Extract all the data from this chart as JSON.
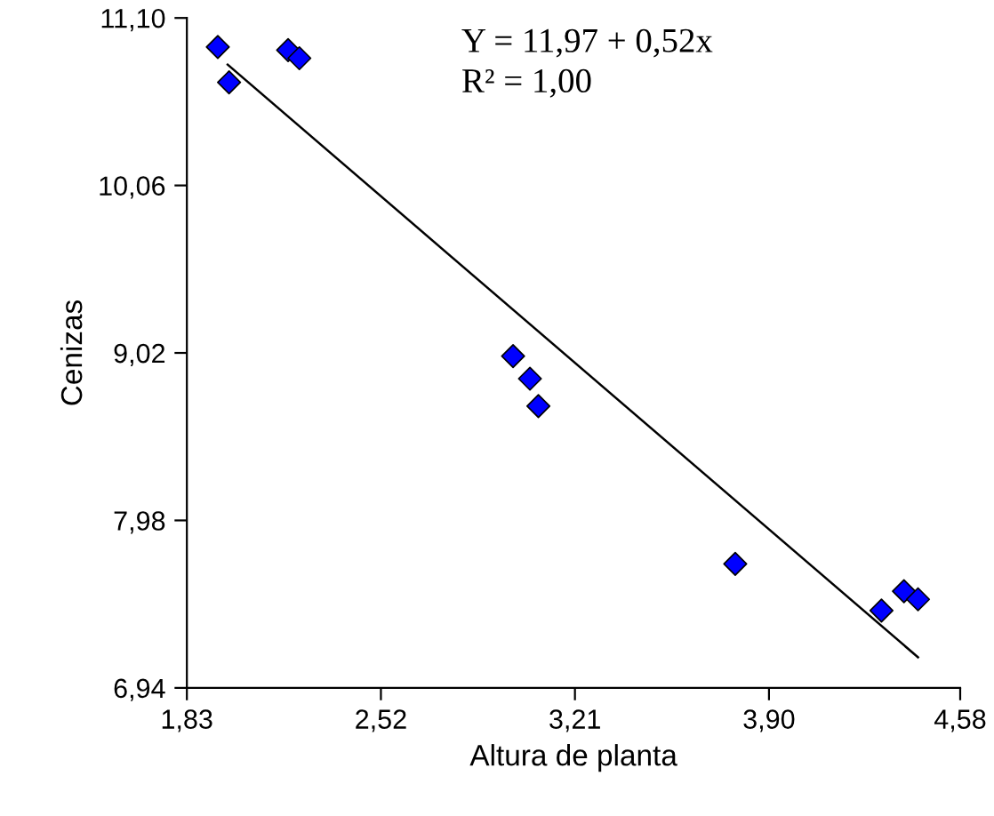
{
  "chart_data": {
    "type": "scatter",
    "xlabel": "Altura de planta",
    "ylabel": "Cenizas",
    "annotations": [
      "Y = 11,97 + 0,52x",
      "R² = 1,00"
    ],
    "xlim": [
      1.83,
      4.58
    ],
    "ylim": [
      6.94,
      11.1
    ],
    "xticks": [
      {
        "value": 1.83,
        "label": "1,83"
      },
      {
        "value": 2.52,
        "label": "2,52"
      },
      {
        "value": 3.21,
        "label": "3,21"
      },
      {
        "value": 3.9,
        "label": "3,90"
      },
      {
        "value": 4.58,
        "label": "4,58"
      }
    ],
    "yticks": [
      {
        "value": 6.94,
        "label": "6,94"
      },
      {
        "value": 7.98,
        "label": "7,98"
      },
      {
        "value": 9.02,
        "label": "9,02"
      },
      {
        "value": 10.06,
        "label": "10,06"
      },
      {
        "value": 11.1,
        "label": "11,10"
      }
    ],
    "grid": false,
    "legend": false,
    "series": [
      {
        "marker": "diamond",
        "color": "#0000ff",
        "x": [
          1.94,
          1.98,
          2.19,
          2.23,
          2.99,
          3.05,
          3.08,
          3.78,
          4.3,
          4.38,
          4.43
        ],
        "values": [
          10.92,
          10.7,
          10.9,
          10.85,
          9.0,
          8.86,
          8.69,
          7.71,
          7.42,
          7.54,
          7.49
        ]
      },
      {
        "type": "line",
        "color": "#000000",
        "line_style": "solid",
        "x": [
          1.975,
          4.43
        ],
        "values": [
          10.81,
          7.13
        ]
      }
    ]
  }
}
